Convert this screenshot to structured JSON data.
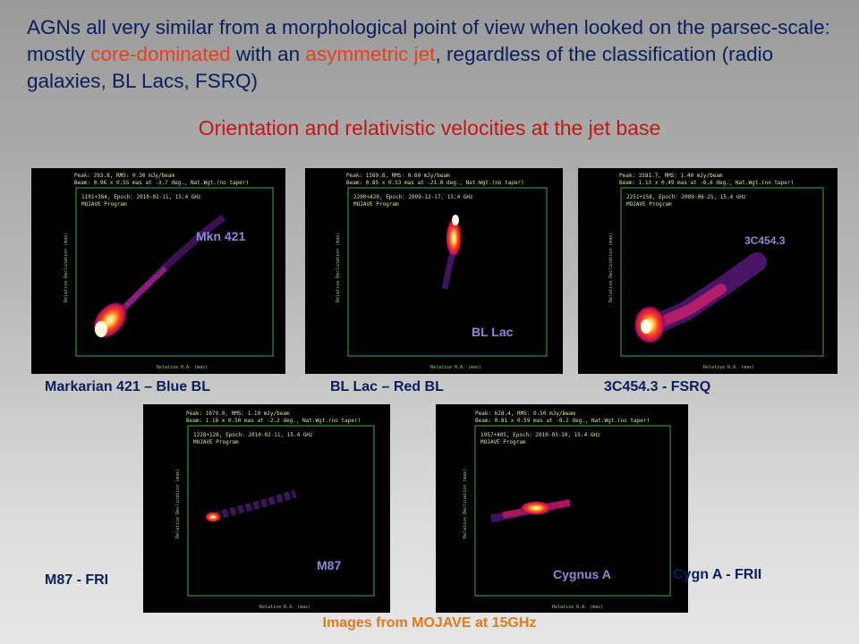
{
  "intro": {
    "part1": "AGNs all very similar from a morphological point of view when looked on the parsec-scale: mostly ",
    "highlight1": "core-dominated",
    "part2": " with an ",
    "highlight2": "asymmetric jet",
    "part3": ", regardless of the classification (radio galaxies, BL Lacs, FSRQ)"
  },
  "subtitle": "Orientation and relativistic velocities at the jet base",
  "panels": [
    {
      "label": "Mkn 421",
      "caption": "Markarian 421 – Blue BL",
      "header": [
        "Peak: 293.8, RMS: 0.30 mJy/beam",
        "Beam: 0.96 x 0.55 mas at -3.7 deg., Nat.Wgt.(no taper)",
        "1101+384, Epoch: 2010-02-11, 15.4 GHz",
        "MOJAVE Program"
      ]
    },
    {
      "label": "BL Lac",
      "caption": "BL Lac – Red BL",
      "header": [
        "Peak: 1569.8, RMS: 0.60 mJy/beam",
        "Beam: 0.85 x 0.53 mas at -21.8 deg., Nat.Wgt.(no taper)",
        "2200+420, Epoch: 2009-12-17, 15.4 GHz",
        "MOJAVE Program"
      ]
    },
    {
      "label": "3C454.3",
      "caption": "3C454.3 - FSRQ",
      "header": [
        "Peak: 3581.7, RMS: 1.40 mJy/beam",
        "Beam: 1.13 x 0.49 mas at -6.6 deg., Nat.Wgt.(no taper)",
        "2251+158, Epoch: 2009-06-25, 15.4 GHz",
        "MOJAVE Program"
      ]
    },
    {
      "label": "M87",
      "caption": "M87 - FRI",
      "header": [
        "Peak: 1079.0, RMS: 1.10 mJy/beam",
        "Beam: 1.18 x 0.50 mas at -2.2 deg., Nat.Wgt.(no taper)",
        "1228+126, Epoch: 2010-02-11, 15.4 GHz",
        "MOJAVE Program"
      ]
    },
    {
      "label": "Cygnus A",
      "caption": "Cygn A - FRII",
      "header": [
        "Peak: 628.4, RMS: 0.50 mJy/beam",
        "Beam: 0.81 x 0.59 mas at -8.2 deg., Nat.Wgt.(no taper)",
        "1957+405, Epoch: 2010-03-10, 15.4 GHz",
        "MOJAVE Program"
      ]
    }
  ],
  "axes": {
    "x_label": "Relative R.A. (mas)",
    "y_label": "Relative Declination (mas)"
  },
  "footer": "Images from MOJAVE at 15GHz",
  "colors": {
    "text": "#0a1f5c",
    "highlight": "#e8401c",
    "subtitle": "#c01818",
    "footer": "#e07a1e",
    "overlay": "#8a8ad8"
  }
}
